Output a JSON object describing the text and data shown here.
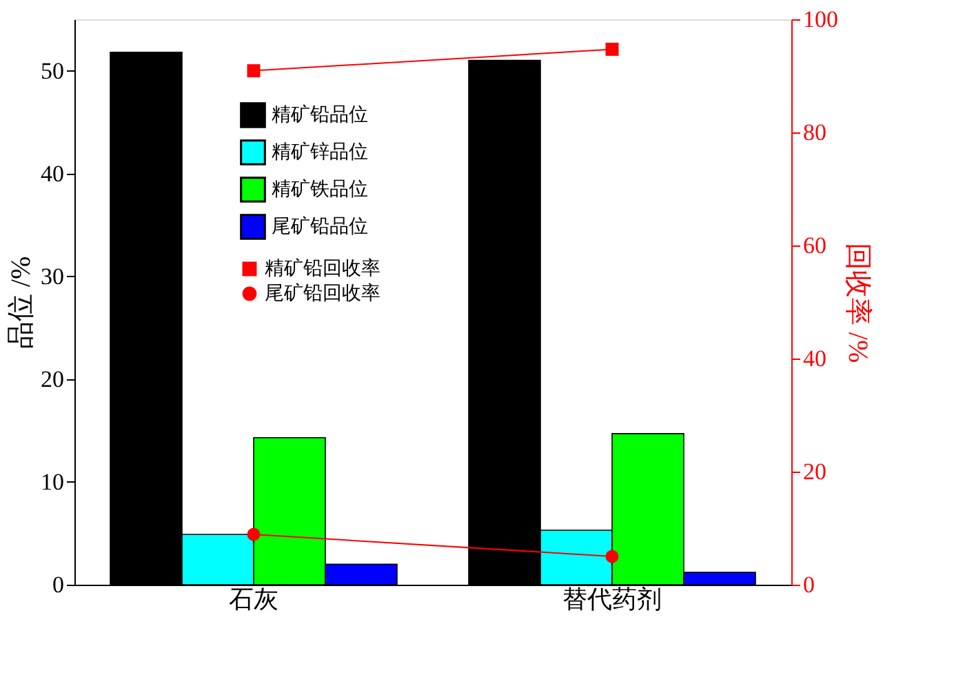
{
  "chart_data": {
    "type": "bar",
    "categories": [
      "石灰",
      "替代药剂"
    ],
    "ylabel": "品位 /%",
    "y2label": "回收率 /%",
    "ylim": [
      0,
      55
    ],
    "yticks": [
      0,
      10,
      20,
      30,
      40,
      50
    ],
    "y2lim": [
      0,
      100
    ],
    "y2ticks": [
      0,
      20,
      40,
      60,
      80,
      100
    ],
    "grid": false,
    "legend": "top left",
    "series": [
      {
        "name": "精矿铅品位",
        "color": "#000000",
        "values": [
          51.8,
          51.0
        ]
      },
      {
        "name": "精矿锌品位",
        "color": "#00ffff",
        "values": [
          4.9,
          5.3
        ]
      },
      {
        "name": "精矿铁品位",
        "color": "#00ff00",
        "values": [
          14.3,
          14.7
        ]
      },
      {
        "name": "尾矿铅品位",
        "color": "#0000ff",
        "values": [
          2.0,
          1.2
        ]
      },
      {
        "name": "精矿铅回收率",
        "type": "line",
        "axis": "y2",
        "marker": "square",
        "color": "#ff0000",
        "values": [
          90.9,
          94.7
        ]
      },
      {
        "name": "尾矿铅回收率",
        "type": "line",
        "axis": "y2",
        "marker": "circle",
        "color": "#ff0000",
        "values": [
          8.9,
          5.0
        ]
      }
    ]
  }
}
